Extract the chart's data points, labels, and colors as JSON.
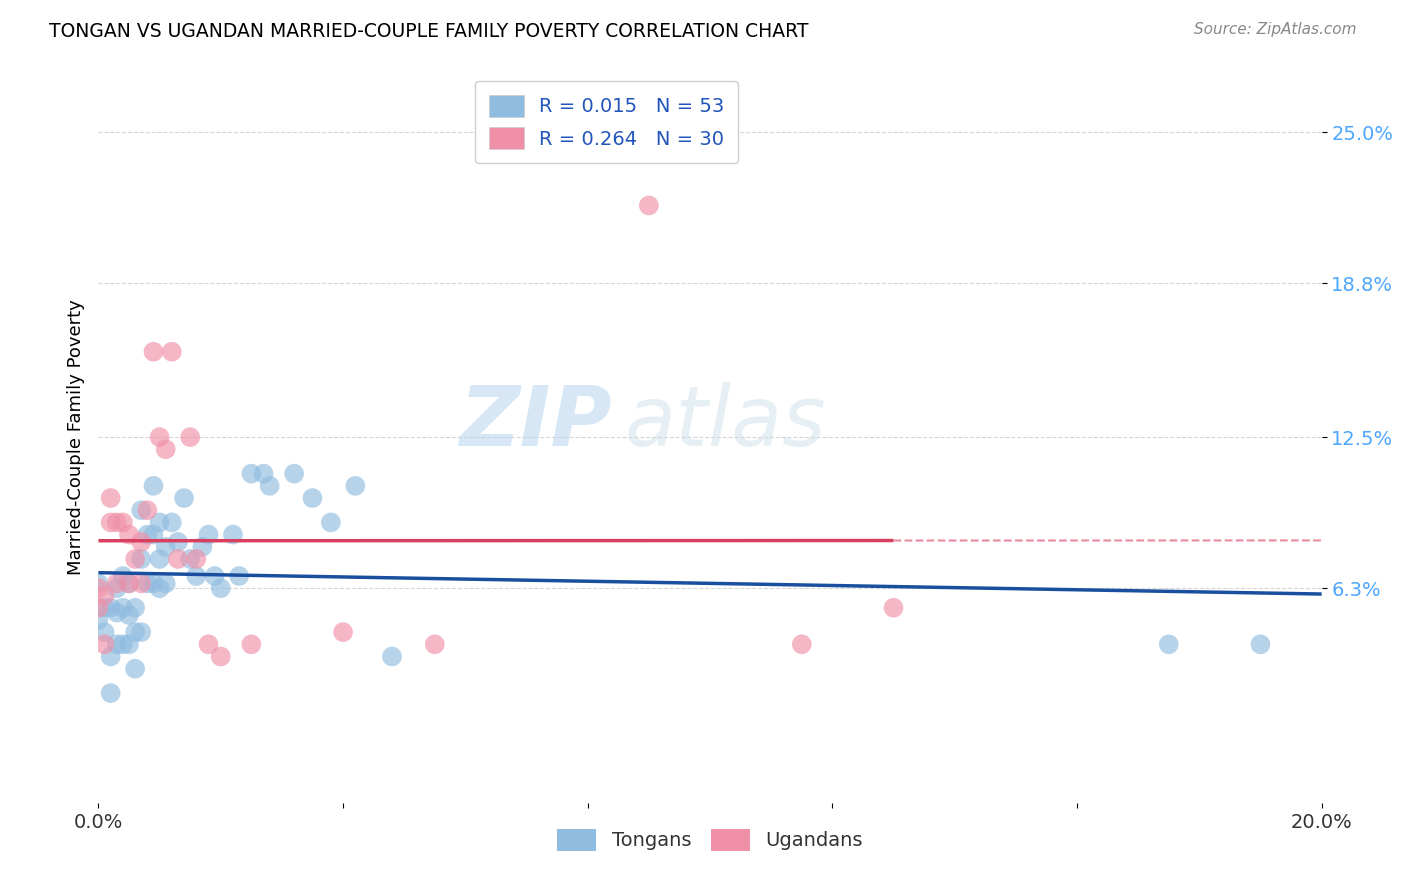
{
  "title": "TONGAN VS UGANDAN MARRIED-COUPLE FAMILY POVERTY CORRELATION CHART",
  "source": "Source: ZipAtlas.com",
  "ylabel": "Married-Couple Family Poverty",
  "xmin": 0.0,
  "xmax": 0.2,
  "ymin": -0.025,
  "ymax": 0.275,
  "yticks": [
    0.063,
    0.125,
    0.188,
    0.25
  ],
  "ytick_labels": [
    "6.3%",
    "12.5%",
    "18.8%",
    "25.0%"
  ],
  "xticks": [
    0.0,
    0.04,
    0.08,
    0.12,
    0.16,
    0.2
  ],
  "xtick_labels": [
    "0.0%",
    "",
    "",
    "",
    "",
    "20.0%"
  ],
  "legend_entries": [
    {
      "label": "Tongans",
      "R": "0.015",
      "N": "53",
      "color": "#a8c8e8"
    },
    {
      "label": "Ugandans",
      "R": "0.264",
      "N": "30",
      "color": "#f4a8bc"
    }
  ],
  "tongan_color": "#90bce0",
  "ugandan_color": "#f090a8",
  "line_tongan_color": "#1a4fa0",
  "line_ugandan_color": "#d84060",
  "background_color": "#ffffff",
  "watermark_zip": "ZIP",
  "watermark_atlas": "atlas",
  "tongan_x": [
    0.0,
    0.0,
    0.001,
    0.001,
    0.002,
    0.002,
    0.002,
    0.003,
    0.003,
    0.003,
    0.004,
    0.004,
    0.004,
    0.005,
    0.005,
    0.005,
    0.006,
    0.006,
    0.006,
    0.007,
    0.007,
    0.007,
    0.008,
    0.008,
    0.009,
    0.009,
    0.009,
    0.01,
    0.01,
    0.01,
    0.011,
    0.011,
    0.012,
    0.013,
    0.014,
    0.015,
    0.016,
    0.017,
    0.018,
    0.019,
    0.02,
    0.022,
    0.023,
    0.025,
    0.027,
    0.028,
    0.032,
    0.035,
    0.038,
    0.042,
    0.048,
    0.19,
    0.175
  ],
  "tongan_y": [
    0.065,
    0.05,
    0.055,
    0.045,
    0.055,
    0.035,
    0.02,
    0.063,
    0.053,
    0.04,
    0.068,
    0.055,
    0.04,
    0.065,
    0.052,
    0.04,
    0.055,
    0.045,
    0.03,
    0.095,
    0.075,
    0.045,
    0.085,
    0.065,
    0.105,
    0.085,
    0.065,
    0.09,
    0.075,
    0.063,
    0.08,
    0.065,
    0.09,
    0.082,
    0.1,
    0.075,
    0.068,
    0.08,
    0.085,
    0.068,
    0.063,
    0.085,
    0.068,
    0.11,
    0.11,
    0.105,
    0.11,
    0.1,
    0.09,
    0.105,
    0.035,
    0.04,
    0.04
  ],
  "ugandan_x": [
    0.0,
    0.0,
    0.001,
    0.001,
    0.002,
    0.002,
    0.003,
    0.003,
    0.004,
    0.005,
    0.005,
    0.006,
    0.007,
    0.007,
    0.008,
    0.009,
    0.01,
    0.011,
    0.012,
    0.013,
    0.015,
    0.016,
    0.018,
    0.02,
    0.025,
    0.04,
    0.055,
    0.09,
    0.115,
    0.13
  ],
  "ugandan_y": [
    0.063,
    0.055,
    0.06,
    0.04,
    0.1,
    0.09,
    0.09,
    0.065,
    0.09,
    0.085,
    0.065,
    0.075,
    0.082,
    0.065,
    0.095,
    0.16,
    0.125,
    0.12,
    0.16,
    0.075,
    0.125,
    0.075,
    0.04,
    0.035,
    0.04,
    0.045,
    0.04,
    0.22,
    0.04,
    0.055
  ],
  "grid_color": "#cccccc",
  "grid_linestyle": "--",
  "ytick_color": "#4da6ff",
  "xtick_color": "#333333"
}
